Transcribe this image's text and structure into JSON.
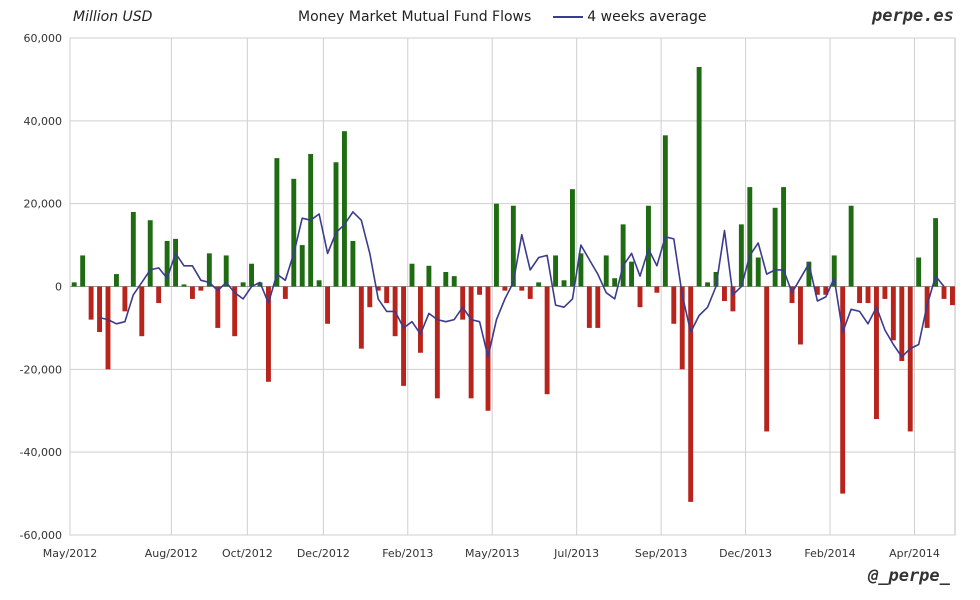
{
  "header": {
    "unit": "Million USD",
    "brand": "perpe.es",
    "handle": "@_perpe_"
  },
  "chart_data": {
    "type": "bar",
    "title": "Money Market Mutual Fund Flows",
    "xlabel": "",
    "ylabel": "Million USD",
    "ylim": [
      -60000,
      60000
    ],
    "grid": true,
    "legend_position": "top",
    "colors": {
      "positive": "#1f6b12",
      "negative": "#b8231c",
      "avg_line": "#3b3b8f",
      "grid": "#cfcfcf"
    },
    "y_ticks": [
      60000,
      40000,
      20000,
      0,
      -20000,
      -40000,
      -60000
    ],
    "y_tick_labels": [
      "60,000",
      "40,000",
      "20,000",
      "0",
      "-20,000",
      "-40,000",
      "-60,000"
    ],
    "x_ticks": [
      {
        "label": "May/2012",
        "week": 0
      },
      {
        "label": "Aug/2012",
        "week": 12
      },
      {
        "label": "Oct/2012",
        "week": 21
      },
      {
        "label": "Dec/2012",
        "week": 30
      },
      {
        "label": "Feb/2013",
        "week": 40
      },
      {
        "label": "May/2013",
        "week": 50
      },
      {
        "label": "Jul/2013",
        "week": 60
      },
      {
        "label": "Sep/2013",
        "week": 70
      },
      {
        "label": "Dec/2013",
        "week": 80
      },
      {
        "label": "Feb/2014",
        "week": 90
      },
      {
        "label": "Apr/2014",
        "week": 100
      }
    ],
    "series": [
      {
        "name": "",
        "kind": "bar",
        "values": [
          1000,
          7500,
          -8000,
          -11000,
          -20000,
          3000,
          -6000,
          18000,
          -12000,
          16000,
          -4000,
          11000,
          11500,
          500,
          -3000,
          -1000,
          8000,
          -10000,
          7500,
          -12000,
          1000,
          5500,
          1000,
          -23000,
          31000,
          -3000,
          26000,
          10000,
          32000,
          1500,
          -9000,
          30000,
          37500,
          11000,
          -15000,
          -5000,
          -1000,
          -4000,
          -12000,
          -24000,
          5500,
          -16000,
          5000,
          -27000,
          3500,
          2500,
          -8000,
          -27000,
          -2000,
          -30000,
          20000,
          -1000,
          19500,
          -1000,
          -3000,
          1000,
          -26000,
          7500,
          1500,
          23500,
          8000,
          -10000,
          -10000,
          7500,
          2000,
          15000,
          6000,
          -5000,
          19500,
          -1500,
          36500,
          -9000,
          -20000,
          -52000,
          53000,
          1000,
          3500,
          -3500,
          -6000,
          15000,
          24000,
          7000,
          -35000,
          19000,
          24000,
          -4000,
          -14000,
          6000,
          -2000,
          -2000,
          7500,
          -50000,
          19500,
          -4000,
          -4000,
          -32000,
          -3000,
          -13000,
          -18000,
          -35000,
          7000,
          -10000,
          16500,
          -3000,
          -4500
        ]
      },
      {
        "name": "4 weeks average",
        "kind": "line",
        "values": [
          null,
          null,
          null,
          -7500,
          -8000,
          -9000,
          -8500,
          -2000,
          1000,
          4000,
          4500,
          2000,
          8000,
          5000,
          5000,
          1500,
          1000,
          -1000,
          1000,
          -1500,
          -3000,
          0,
          1000,
          -4000,
          3000,
          1500,
          8000,
          16500,
          16000,
          17500,
          8000,
          13000,
          15000,
          18000,
          16000,
          8000,
          -3000,
          -6000,
          -6000,
          -10000,
          -8500,
          -11500,
          -6500,
          -8000,
          -8500,
          -8000,
          -5000,
          -8000,
          -8500,
          -17000,
          -8000,
          -3000,
          1000,
          12500,
          4000,
          7000,
          7500,
          -4500,
          -5000,
          -3000,
          10000,
          6500,
          3000,
          -1500,
          -3000,
          5000,
          8000,
          2500,
          9000,
          5000,
          12000,
          11500,
          -2000,
          -11000,
          -7000,
          -5000,
          0,
          13500,
          -2000,
          0,
          7500,
          10500,
          3000,
          4000,
          4000,
          -1500,
          2000,
          5500,
          -3500,
          -2500,
          2000,
          -11000,
          -5500,
          -6000,
          -9000,
          -5000,
          -10500,
          -14000,
          -17000,
          -15000,
          -14000,
          -4500,
          2500,
          0
        ]
      }
    ]
  }
}
